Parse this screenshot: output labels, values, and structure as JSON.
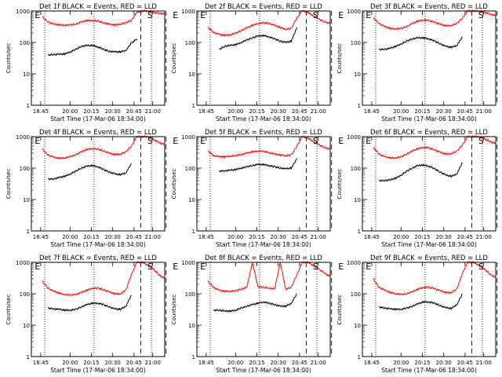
{
  "chart_data": [
    {
      "type": "line",
      "title": "Det 1f BLACK = Events, RED = LLD",
      "xlabel": "Start Time (17-Mar-06 18:34:00)",
      "ylabel": "Counts/sec",
      "yscale": "log",
      "ylim": [
        1,
        1000
      ],
      "yticks": [
        "1",
        "10",
        "100",
        "1000"
      ],
      "xlim": [
        "18:34",
        "21:25"
      ],
      "xticks": [
        "18:45",
        "20:00",
        "20:15",
        "20:30",
        "20:45",
        "21:00"
      ],
      "annotations": [
        "E",
        "S",
        "E"
      ],
      "series": [
        {
          "color": "#000000",
          "values": [
            0,
            0,
            0,
            40,
            41,
            42,
            43,
            50,
            60,
            75,
            80,
            80,
            72,
            60,
            52,
            50,
            50,
            56,
            95,
            130,
            0,
            0,
            0,
            0,
            0
          ]
        },
        {
          "color": "#ff0000",
          "values": [
            0,
            0,
            650,
            450,
            380,
            360,
            355,
            360,
            380,
            450,
            500,
            500,
            480,
            420,
            380,
            360,
            380,
            420,
            500,
            900,
            1000,
            1000,
            900,
            850,
            800
          ]
        }
      ]
    },
    {
      "type": "line",
      "title": "Det 2f BLACK = Events, RED = LLD",
      "xlabel": "Start Time (17-Mar-06 18:34:00)",
      "ylabel": "Counts/sec",
      "yscale": "log",
      "ylim": [
        1,
        1000
      ],
      "yticks": [
        "1",
        "10",
        "100",
        "1000"
      ],
      "xlim": [
        "18:34",
        "21:25"
      ],
      "xticks": [
        "18:45",
        "20:00",
        "20:15",
        "20:30",
        "20:45",
        "21:00"
      ],
      "annotations": [
        "E",
        "S",
        "E"
      ],
      "series": [
        {
          "color": "#000000",
          "values": [
            0,
            0,
            0,
            0,
            60,
            75,
            80,
            85,
            100,
            120,
            140,
            160,
            165,
            150,
            130,
            110,
            100,
            110,
            300,
            0,
            0,
            0,
            0,
            0,
            0
          ]
        },
        {
          "color": "#ff0000",
          "values": [
            0,
            0,
            300,
            210,
            180,
            170,
            175,
            200,
            240,
            290,
            350,
            400,
            420,
            400,
            350,
            300,
            260,
            280,
            600,
            1000,
            900,
            700,
            550,
            450,
            400
          ]
        }
      ]
    },
    {
      "type": "line",
      "title": "Det 3f BLACK = Events, RED = LLD",
      "xlabel": "Start Time (17-Mar-06 18:34:00)",
      "ylabel": "Counts/sec",
      "yscale": "log",
      "ylim": [
        1,
        1000
      ],
      "yticks": [
        "1",
        "10",
        "100",
        "1000"
      ],
      "xlim": [
        "18:34",
        "21:25"
      ],
      "xticks": [
        "18:45",
        "20:00",
        "20:15",
        "20:30",
        "20:45",
        "21:00"
      ],
      "annotations": [
        "E",
        "S",
        "E"
      ],
      "series": [
        {
          "color": "#000000",
          "values": [
            0,
            0,
            0,
            60,
            60,
            65,
            75,
            90,
            110,
            130,
            140,
            140,
            130,
            110,
            90,
            75,
            70,
            80,
            150,
            0,
            0,
            0,
            0,
            0,
            0
          ]
        },
        {
          "color": "#ff0000",
          "values": [
            0,
            0,
            600,
            400,
            320,
            280,
            270,
            280,
            320,
            400,
            480,
            520,
            500,
            440,
            380,
            340,
            350,
            400,
            600,
            1000,
            1000,
            1000,
            900,
            800,
            700
          ]
        }
      ]
    },
    {
      "type": "line",
      "title": "Det 4f BLACK = Events, RED = LLD",
      "xlabel": "Start Time (17-Mar-06 18:34:00)",
      "ylabel": "Counts/sec",
      "yscale": "log",
      "ylim": [
        1,
        1000
      ],
      "yticks": [
        "1",
        "10",
        "100",
        "1000"
      ],
      "xlim": [
        "18:34",
        "21:25"
      ],
      "xticks": [
        "18:45",
        "20:00",
        "20:15",
        "20:30",
        "20:45",
        "21:00"
      ],
      "annotations": [
        "E",
        "S",
        "E"
      ],
      "series": [
        {
          "color": "#000000",
          "values": [
            0,
            0,
            0,
            45,
            45,
            50,
            55,
            65,
            80,
            100,
            115,
            120,
            110,
            90,
            75,
            65,
            62,
            70,
            140,
            0,
            0,
            0,
            0,
            0,
            0
          ]
        },
        {
          "color": "#ff0000",
          "values": [
            0,
            0,
            400,
            260,
            220,
            205,
            210,
            230,
            270,
            330,
            390,
            420,
            400,
            350,
            300,
            270,
            280,
            330,
            500,
            1000,
            1000,
            1000,
            800,
            650,
            550
          ]
        }
      ]
    },
    {
      "type": "line",
      "title": "Det 5f BLACK = Events, RED = LLD",
      "xlabel": "Start Time (17-Mar-06 18:34:00)",
      "ylabel": "Counts/sec",
      "yscale": "log",
      "ylim": [
        1,
        1000
      ],
      "yticks": [
        "1",
        "10",
        "100",
        "1000"
      ],
      "xlim": [
        "18:34",
        "21:25"
      ],
      "xticks": [
        "18:45",
        "20:00",
        "20:15",
        "20:30",
        "20:45",
        "21:00"
      ],
      "annotations": [
        "E",
        "S",
        "E"
      ],
      "series": [
        {
          "color": "#000000",
          "values": [
            0,
            0,
            0,
            0,
            80,
            82,
            85,
            90,
            100,
            110,
            120,
            130,
            130,
            120,
            110,
            100,
            95,
            100,
            200,
            0,
            0,
            0,
            0,
            0,
            0
          ]
        },
        {
          "color": "#ff0000",
          "values": [
            0,
            0,
            350,
            250,
            230,
            230,
            240,
            250,
            270,
            300,
            330,
            350,
            340,
            310,
            280,
            260,
            250,
            260,
            500,
            1000,
            900,
            700,
            550,
            450,
            400
          ]
        }
      ]
    },
    {
      "type": "line",
      "title": "Det 6f BLACK = Events, RED = LLD",
      "xlabel": "Start Time (17-Mar-06 18:34:00)",
      "ylabel": "Counts/sec",
      "yscale": "log",
      "ylim": [
        1,
        1000
      ],
      "yticks": [
        "1",
        "10",
        "100",
        "1000"
      ],
      "xlim": [
        "18:34",
        "21:25"
      ],
      "xticks": [
        "18:45",
        "20:00",
        "20:15",
        "20:30",
        "20:45",
        "21:00"
      ],
      "annotations": [
        "E",
        "S",
        "E"
      ],
      "series": [
        {
          "color": "#000000",
          "values": [
            0,
            0,
            0,
            40,
            40,
            42,
            48,
            60,
            80,
            100,
            120,
            125,
            115,
            95,
            75,
            60,
            55,
            65,
            150,
            0,
            0,
            0,
            0,
            0,
            0
          ]
        },
        {
          "color": "#ff0000",
          "values": [
            0,
            0,
            450,
            280,
            230,
            210,
            210,
            230,
            280,
            350,
            420,
            460,
            440,
            380,
            320,
            280,
            290,
            340,
            550,
            1000,
            1000,
            1000,
            850,
            700,
            600
          ]
        }
      ]
    },
    {
      "type": "line",
      "title": "Det 7f BLACK = Events, RED = LLD",
      "xlabel": "Start Time (17-Mar-06 18:34:00)",
      "ylabel": "Counts/sec",
      "yscale": "log",
      "ylim": [
        1,
        1000
      ],
      "yticks": [
        "1",
        "10",
        "100",
        "1000"
      ],
      "xlim": [
        "18:34",
        "21:25"
      ],
      "xticks": [
        "18:45",
        "20:00",
        "20:15",
        "20:30",
        "20:45",
        "21:00"
      ],
      "annotations": [
        "E",
        "S",
        "E"
      ],
      "series": [
        {
          "color": "#000000",
          "values": [
            0,
            0,
            0,
            35,
            33,
            32,
            30,
            30,
            32,
            38,
            45,
            50,
            50,
            45,
            38,
            33,
            32,
            40,
            90,
            0,
            0,
            0,
            0,
            0,
            0
          ]
        },
        {
          "color": "#ff0000",
          "values": [
            0,
            0,
            250,
            150,
            120,
            105,
            95,
            90,
            95,
            110,
            130,
            150,
            150,
            135,
            115,
            100,
            100,
            130,
            400,
            1000,
            1000,
            800,
            600,
            400,
            300
          ]
        }
      ]
    },
    {
      "type": "line",
      "title": "Det 8f BLACK = Events, RED = LLD",
      "xlabel": "Start Time (17-Mar-06 18:34:00)",
      "ylabel": "Counts/sec",
      "yscale": "log",
      "ylim": [
        1,
        1000
      ],
      "yticks": [
        "1",
        "10",
        "100",
        "1000"
      ],
      "xlim": [
        "18:34",
        "21:25"
      ],
      "xticks": [
        "18:45",
        "20:00",
        "20:15",
        "20:30",
        "20:45",
        "21:00"
      ],
      "annotations": [
        "E",
        "S",
        "E"
      ],
      "series": [
        {
          "color": "#000000",
          "values": [
            0,
            0,
            0,
            30,
            30,
            28,
            28,
            30,
            35,
            40,
            45,
            50,
            55,
            50,
            45,
            40,
            40,
            50,
            100,
            0,
            0,
            0,
            0,
            0,
            0
          ]
        },
        {
          "color": "#ff0000",
          "values": [
            0,
            0,
            250,
            160,
            130,
            120,
            120,
            125,
            140,
            160,
            1000,
            170,
            160,
            150,
            140,
            1000,
            140,
            160,
            400,
            1000,
            1000,
            800,
            600,
            450,
            350
          ]
        }
      ]
    },
    {
      "type": "line",
      "title": "Det 9f BLACK = Events, RED = LLD",
      "xlabel": "Start Time (17-Mar-06 18:34:00)",
      "ylabel": "Counts/sec",
      "yscale": "log",
      "ylim": [
        1,
        1000
      ],
      "yticks": [
        "1",
        "10",
        "100",
        "1000"
      ],
      "xlim": [
        "18:34",
        "21:25"
      ],
      "xticks": [
        "18:45",
        "20:00",
        "20:15",
        "20:30",
        "20:45",
        "21:00"
      ],
      "annotations": [
        "E",
        "S",
        "E"
      ],
      "series": [
        {
          "color": "#000000",
          "values": [
            0,
            0,
            0,
            38,
            35,
            33,
            32,
            32,
            35,
            40,
            48,
            55,
            55,
            50,
            42,
            36,
            34,
            45,
            100,
            0,
            0,
            0,
            0,
            0,
            0
          ]
        },
        {
          "color": "#ff0000",
          "values": [
            0,
            0,
            300,
            160,
            130,
            110,
            100,
            95,
            100,
            115,
            140,
            160,
            160,
            145,
            125,
            110,
            110,
            140,
            450,
            1000,
            1000,
            800,
            600,
            420,
            320
          ]
        }
      ]
    }
  ]
}
